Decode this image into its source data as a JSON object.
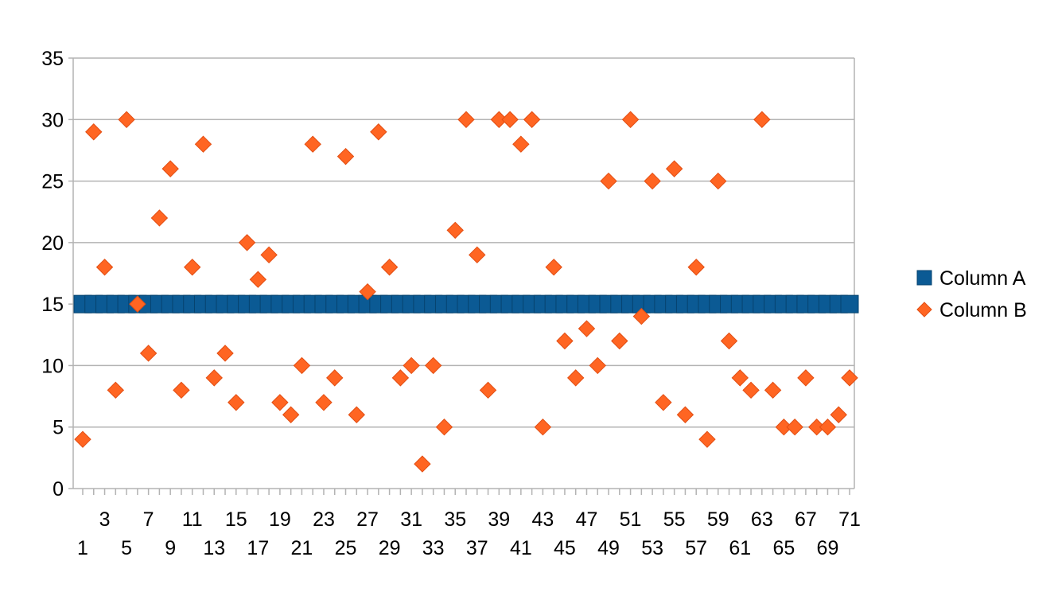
{
  "chart_data": {
    "type": "scatter",
    "title": "",
    "xlabel": "",
    "ylabel": "",
    "x": [
      1,
      2,
      3,
      4,
      5,
      6,
      7,
      8,
      9,
      10,
      11,
      12,
      13,
      14,
      15,
      16,
      17,
      18,
      19,
      20,
      21,
      22,
      23,
      24,
      25,
      26,
      27,
      28,
      29,
      30,
      31,
      32,
      33,
      34,
      35,
      36,
      37,
      38,
      39,
      40,
      41,
      42,
      43,
      44,
      45,
      46,
      47,
      48,
      49,
      50,
      51,
      52,
      53,
      54,
      55,
      56,
      57,
      58,
      59,
      60,
      61,
      62,
      63,
      64,
      65,
      66,
      67,
      68,
      69,
      70,
      71
    ],
    "xlim": [
      1,
      71
    ],
    "ylim": [
      0,
      35
    ],
    "y_ticks": [
      "0",
      "5",
      "10",
      "15",
      "20",
      "25",
      "30",
      "35"
    ],
    "x_ticks_lower": [
      "1",
      "5",
      "9",
      "13",
      "17",
      "21",
      "25",
      "29",
      "33",
      "37",
      "41",
      "45",
      "49",
      "53",
      "57",
      "61",
      "65",
      "69"
    ],
    "x_ticks_upper": [
      "3",
      "7",
      "11",
      "15",
      "19",
      "23",
      "27",
      "31",
      "35",
      "39",
      "43",
      "47",
      "51",
      "55",
      "59",
      "63",
      "67",
      "71"
    ],
    "grid": "horizontal",
    "legend_position": "right",
    "series": [
      {
        "name": "Column A",
        "marker": "square",
        "color": "#0b5a94",
        "values": [
          15,
          15,
          15,
          15,
          15,
          15,
          15,
          15,
          15,
          15,
          15,
          15,
          15,
          15,
          15,
          15,
          15,
          15,
          15,
          15,
          15,
          15,
          15,
          15,
          15,
          15,
          15,
          15,
          15,
          15,
          15,
          15,
          15,
          15,
          15,
          15,
          15,
          15,
          15,
          15,
          15,
          15,
          15,
          15,
          15,
          15,
          15,
          15,
          15,
          15,
          15,
          15,
          15,
          15,
          15,
          15,
          15,
          15,
          15,
          15,
          15,
          15,
          15,
          15,
          15,
          15,
          15,
          15,
          15,
          15,
          15
        ]
      },
      {
        "name": "Column B",
        "marker": "diamond",
        "color": "#ff6522",
        "values": [
          4,
          29,
          18,
          8,
          30,
          15,
          11,
          22,
          26,
          8,
          18,
          28,
          9,
          11,
          7,
          20,
          17,
          19,
          7,
          6,
          10,
          28,
          7,
          9,
          27,
          6,
          16,
          29,
          18,
          9,
          10,
          2,
          10,
          5,
          21,
          30,
          19,
          8,
          30,
          30,
          28,
          30,
          5,
          18,
          12,
          9,
          13,
          10,
          25,
          12,
          30,
          14,
          25,
          7,
          26,
          6,
          18,
          4,
          25,
          12,
          9,
          8,
          30,
          8,
          5,
          5,
          9,
          5,
          5,
          6,
          9
        ]
      }
    ]
  }
}
